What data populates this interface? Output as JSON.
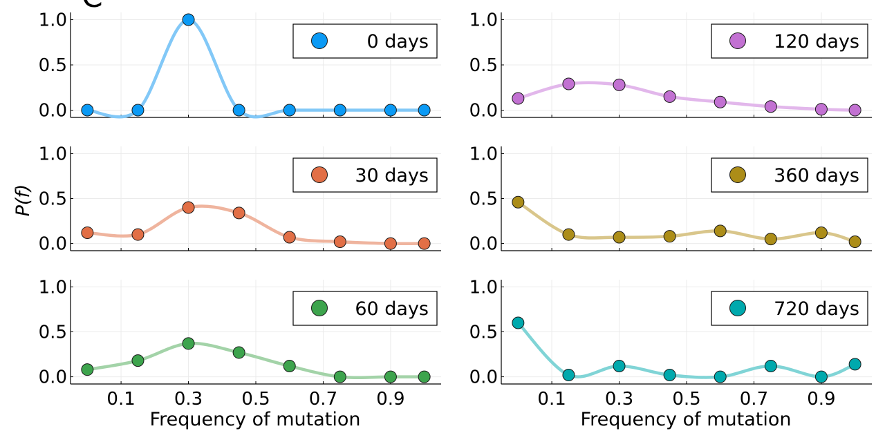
{
  "figure": {
    "panel_letter": "C",
    "ylabel": "P(f)",
    "xlabel_left": "Frequency of mutation",
    "xlabel_right": "Frequency of mutation"
  },
  "chart_data": [
    {
      "type": "line",
      "series": [
        {
          "name": "0 days",
          "color": "#0b9af5",
          "line_color": "#82c8f7",
          "x": [
            0,
            0.15,
            0.3,
            0.45,
            0.6,
            0.75,
            0.9,
            1.0
          ],
          "values": [
            0.0,
            0.0,
            1.0,
            0.0,
            0.0,
            0.0,
            0.0,
            0.0
          ]
        }
      ],
      "xticks": [
        "0.1",
        "0.3",
        "0.5",
        "0.7",
        "0.9"
      ],
      "yticks": [
        "0.0",
        "0.5",
        "1.0"
      ],
      "xlim": [
        -0.05,
        1.05
      ],
      "ylim": [
        -0.08,
        1.08
      ],
      "legend": "top-right",
      "grid": true
    },
    {
      "type": "line",
      "series": [
        {
          "name": "30 days",
          "color": "#e26f46",
          "line_color": "#efb49e",
          "x": [
            0,
            0.15,
            0.3,
            0.45,
            0.6,
            0.75,
            0.9,
            1.0
          ],
          "values": [
            0.12,
            0.1,
            0.4,
            0.34,
            0.07,
            0.02,
            0.0,
            0.0
          ]
        }
      ],
      "xticks": [
        "0.1",
        "0.3",
        "0.5",
        "0.7",
        "0.9"
      ],
      "yticks": [
        "0.0",
        "0.5",
        "1.0"
      ],
      "xlim": [
        -0.05,
        1.05
      ],
      "ylim": [
        -0.08,
        1.08
      ],
      "legend": "top-right",
      "grid": true
    },
    {
      "type": "line",
      "series": [
        {
          "name": "60 days",
          "color": "#3da44d",
          "line_color": "#a3d3a8",
          "x": [
            0,
            0.15,
            0.3,
            0.45,
            0.6,
            0.75,
            0.9,
            1.0
          ],
          "values": [
            0.08,
            0.18,
            0.37,
            0.27,
            0.12,
            0.0,
            0.0,
            0.0
          ]
        }
      ],
      "xticks": [
        "0.1",
        "0.3",
        "0.5",
        "0.7",
        "0.9"
      ],
      "yticks": [
        "0.0",
        "0.5",
        "1.0"
      ],
      "xlim": [
        -0.05,
        1.05
      ],
      "ylim": [
        -0.08,
        1.08
      ],
      "legend": "top-right",
      "grid": true
    },
    {
      "type": "line",
      "series": [
        {
          "name": "120 days",
          "color": "#c271d2",
          "line_color": "#e2b7eb",
          "x": [
            0,
            0.15,
            0.3,
            0.45,
            0.6,
            0.75,
            0.9,
            1.0
          ],
          "values": [
            0.13,
            0.29,
            0.28,
            0.15,
            0.09,
            0.04,
            0.01,
            0.0
          ]
        }
      ],
      "xticks": [
        "0.1",
        "0.3",
        "0.5",
        "0.7",
        "0.9"
      ],
      "yticks": [
        "0.0",
        "0.5",
        "1.0"
      ],
      "xlim": [
        -0.05,
        1.05
      ],
      "ylim": [
        -0.08,
        1.08
      ],
      "legend": "top-right",
      "grid": true
    },
    {
      "type": "line",
      "series": [
        {
          "name": "360 days",
          "color": "#ac8d18",
          "line_color": "#d9c68b",
          "x": [
            0,
            0.15,
            0.3,
            0.45,
            0.6,
            0.75,
            0.9,
            1.0
          ],
          "values": [
            0.46,
            0.1,
            0.07,
            0.08,
            0.14,
            0.05,
            0.12,
            0.02
          ]
        }
      ],
      "xticks": [
        "0.1",
        "0.3",
        "0.5",
        "0.7",
        "0.9"
      ],
      "yticks": [
        "0.0",
        "0.5",
        "1.0"
      ],
      "xlim": [
        -0.05,
        1.05
      ],
      "ylim": [
        -0.08,
        1.08
      ],
      "legend": "top-right",
      "grid": true
    },
    {
      "type": "line",
      "series": [
        {
          "name": "720 days",
          "color": "#00a9ad",
          "line_color": "#80d4d6",
          "x": [
            0,
            0.15,
            0.3,
            0.45,
            0.6,
            0.75,
            0.9,
            1.0
          ],
          "values": [
            0.6,
            0.02,
            0.12,
            0.02,
            0.0,
            0.12,
            0.0,
            0.14
          ]
        }
      ],
      "xticks": [
        "0.1",
        "0.3",
        "0.5",
        "0.7",
        "0.9"
      ],
      "yticks": [
        "0.0",
        "0.5",
        "1.0"
      ],
      "xlim": [
        -0.05,
        1.05
      ],
      "ylim": [
        -0.08,
        1.08
      ],
      "legend": "top-right",
      "grid": true
    }
  ]
}
